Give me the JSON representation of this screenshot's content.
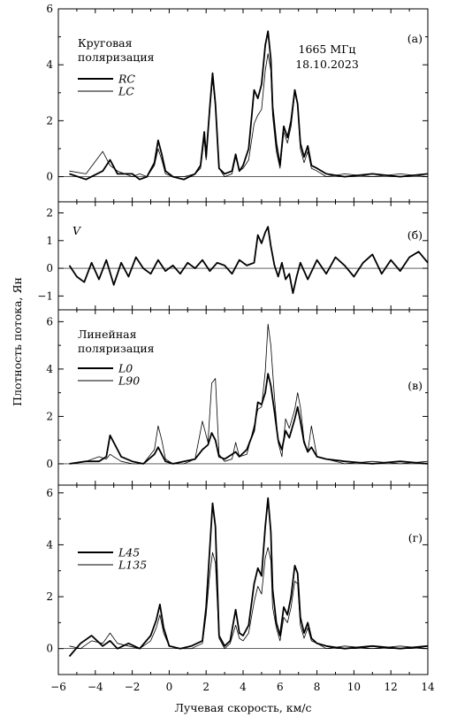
{
  "figure": {
    "xlabel": "Лучевая скорость, км/с",
    "ylabel": "Плотность потока, Ян",
    "xlim": [
      -6,
      14
    ],
    "xticks": [
      -6,
      -4,
      -2,
      0,
      2,
      4,
      6,
      8,
      10,
      12,
      14
    ],
    "xtick_labels": [
      "−6",
      "−4",
      "−2",
      "0",
      "2",
      "4",
      "6",
      "8",
      "10",
      "12",
      "14"
    ]
  },
  "chart_data": [
    {
      "type": "line",
      "panel_label": "(а)",
      "legend_title": "Круговая\nполяризация",
      "header_note": "1665 МГц\n18.10.2023",
      "ylim": [
        -0.9,
        6
      ],
      "yticks": [
        0,
        2,
        4,
        6
      ],
      "ytick_labels": [
        "0",
        "2",
        "4",
        "6"
      ],
      "zero_line": true,
      "series": [
        {
          "name": "RC",
          "style": "thick",
          "x": [
            -5.4,
            -4.5,
            -3.6,
            -3.2,
            -2.8,
            -2.0,
            -1.6,
            -1.2,
            -0.8,
            -0.6,
            -0.4,
            -0.2,
            0.2,
            0.8,
            1.4,
            1.7,
            1.9,
            2.0,
            2.2,
            2.35,
            2.5,
            2.7,
            3.0,
            3.4,
            3.6,
            3.8,
            4.0,
            4.3,
            4.6,
            4.8,
            5.0,
            5.2,
            5.35,
            5.5,
            5.6,
            5.8,
            6.0,
            6.2,
            6.4,
            6.6,
            6.8,
            6.95,
            7.1,
            7.3,
            7.5,
            7.7,
            8.0,
            8.5,
            9.5,
            11,
            12.5,
            14
          ],
          "y": [
            0.1,
            -0.1,
            0.2,
            0.6,
            0.1,
            0.1,
            -0.1,
            0.0,
            0.5,
            1.3,
            0.8,
            0.2,
            0.0,
            -0.1,
            0.1,
            0.4,
            1.6,
            0.7,
            2.5,
            3.7,
            2.6,
            0.3,
            0.1,
            0.2,
            0.8,
            0.2,
            0.4,
            1.0,
            3.1,
            2.8,
            3.3,
            4.7,
            5.2,
            4.2,
            2.5,
            1.2,
            0.4,
            1.8,
            1.4,
            2.0,
            3.1,
            2.6,
            1.2,
            0.7,
            1.1,
            0.4,
            0.3,
            0.1,
            0.0,
            0.1,
            0.0,
            0.1
          ]
        },
        {
          "name": "LC",
          "style": "thin",
          "x": [
            -5.4,
            -4.5,
            -3.6,
            -3.2,
            -2.8,
            -2.0,
            -1.6,
            -1.2,
            -0.8,
            -0.6,
            -0.4,
            -0.2,
            0.2,
            0.8,
            1.4,
            1.7,
            1.9,
            2.0,
            2.2,
            2.35,
            2.5,
            2.7,
            3.0,
            3.4,
            3.6,
            3.8,
            4.0,
            4.3,
            4.6,
            4.8,
            5.0,
            5.2,
            5.35,
            5.5,
            5.6,
            5.8,
            6.0,
            6.2,
            6.4,
            6.6,
            6.8,
            6.95,
            7.1,
            7.3,
            7.5,
            7.7,
            8.0,
            8.5,
            9.5,
            11,
            12.5,
            14
          ],
          "y": [
            0.2,
            0.1,
            0.9,
            0.4,
            0.2,
            0.0,
            0.1,
            0.0,
            0.4,
            1.0,
            0.6,
            0.1,
            0.0,
            0.0,
            0.1,
            0.3,
            1.4,
            0.6,
            2.4,
            3.5,
            2.5,
            0.3,
            0.0,
            0.1,
            0.7,
            0.2,
            0.3,
            0.6,
            1.9,
            2.2,
            2.4,
            3.8,
            4.4,
            3.8,
            2.2,
            0.9,
            0.3,
            1.6,
            1.2,
            1.8,
            3.0,
            2.6,
            1.0,
            0.5,
            0.9,
            0.3,
            0.2,
            0.0,
            0.1,
            0.0,
            0.1,
            0.0
          ]
        }
      ]
    },
    {
      "type": "line",
      "panel_label": "(б)",
      "legend_title": "V",
      "ylim": [
        -1.5,
        2.4
      ],
      "yticks": [
        -1,
        0,
        1,
        2
      ],
      "ytick_labels": [
        "−1",
        "0",
        "1",
        "2"
      ],
      "zero_line": true,
      "series": [
        {
          "name": "V",
          "style": "thick",
          "x": [
            -5.4,
            -5.0,
            -4.6,
            -4.2,
            -3.8,
            -3.4,
            -3.0,
            -2.6,
            -2.2,
            -1.8,
            -1.4,
            -1.0,
            -0.6,
            -0.2,
            0.2,
            0.6,
            1.0,
            1.4,
            1.8,
            2.2,
            2.6,
            3.0,
            3.4,
            3.8,
            4.2,
            4.6,
            4.8,
            5.0,
            5.2,
            5.35,
            5.5,
            5.7,
            5.9,
            6.1,
            6.3,
            6.5,
            6.7,
            6.9,
            7.1,
            7.5,
            8.0,
            8.5,
            9.0,
            9.5,
            10,
            10.5,
            11,
            11.5,
            12,
            12.5,
            13,
            13.5,
            14
          ],
          "y": [
            0.1,
            -0.3,
            -0.5,
            0.2,
            -0.4,
            0.3,
            -0.6,
            0.2,
            -0.3,
            0.4,
            0.0,
            -0.2,
            0.3,
            -0.1,
            0.1,
            -0.2,
            0.2,
            0.0,
            0.3,
            -0.1,
            0.2,
            0.1,
            -0.2,
            0.3,
            0.1,
            0.2,
            1.2,
            0.9,
            1.3,
            1.5,
            0.8,
            0.1,
            -0.3,
            0.2,
            -0.4,
            -0.2,
            -0.9,
            -0.3,
            0.2,
            -0.4,
            0.3,
            -0.2,
            0.4,
            0.1,
            -0.3,
            0.2,
            0.5,
            -0.2,
            0.3,
            -0.1,
            0.4,
            0.6,
            0.2
          ]
        }
      ]
    },
    {
      "type": "line",
      "panel_label": "(в)",
      "legend_title": "Линейная\nполяризация",
      "ylim": [
        -0.9,
        6.5
      ],
      "yticks": [
        0,
        2,
        4,
        6
      ],
      "ytick_labels": [
        "0",
        "2",
        "4",
        "6"
      ],
      "zero_line": true,
      "series": [
        {
          "name": "L0",
          "style": "thick",
          "x": [
            -5.4,
            -4.5,
            -3.8,
            -3.4,
            -3.2,
            -3.0,
            -2.6,
            -2.0,
            -1.4,
            -0.8,
            -0.6,
            -0.4,
            -0.2,
            0.2,
            0.8,
            1.4,
            1.8,
            2.1,
            2.3,
            2.5,
            2.7,
            3.0,
            3.4,
            3.6,
            3.8,
            4.2,
            4.6,
            4.8,
            5.0,
            5.2,
            5.35,
            5.5,
            5.7,
            5.9,
            6.1,
            6.3,
            6.5,
            6.8,
            6.95,
            7.1,
            7.3,
            7.5,
            7.7,
            8.0,
            8.5,
            9.5,
            11,
            12.5,
            14
          ],
          "y": [
            0.0,
            0.1,
            0.1,
            0.3,
            1.2,
            0.9,
            0.3,
            0.1,
            0.0,
            0.4,
            0.7,
            0.4,
            0.1,
            0.0,
            0.1,
            0.2,
            0.6,
            0.8,
            1.3,
            1.0,
            0.3,
            0.2,
            0.4,
            0.5,
            0.3,
            0.6,
            1.4,
            2.6,
            2.5,
            3.0,
            3.8,
            3.3,
            2.2,
            1.0,
            0.6,
            1.4,
            1.1,
            1.9,
            2.4,
            1.8,
            0.9,
            0.5,
            0.7,
            0.3,
            0.2,
            0.1,
            0.0,
            0.1,
            0.0
          ]
        },
        {
          "name": "L90",
          "style": "thin",
          "x": [
            -5.4,
            -4.5,
            -3.8,
            -3.4,
            -3.2,
            -3.0,
            -2.6,
            -2.0,
            -1.4,
            -0.8,
            -0.6,
            -0.4,
            -0.2,
            0.2,
            0.8,
            1.4,
            1.8,
            2.1,
            2.3,
            2.5,
            2.7,
            3.0,
            3.4,
            3.6,
            3.8,
            4.2,
            4.6,
            4.8,
            5.0,
            5.2,
            5.35,
            5.5,
            5.7,
            5.9,
            6.1,
            6.3,
            6.5,
            6.8,
            6.95,
            7.1,
            7.3,
            7.5,
            7.7,
            8.0,
            8.5,
            9.5,
            11,
            12.5,
            14
          ],
          "y": [
            0.0,
            0.1,
            0.3,
            0.2,
            0.4,
            0.3,
            0.1,
            0.0,
            0.0,
            0.6,
            1.6,
            1.0,
            0.2,
            0.0,
            0.0,
            0.2,
            1.8,
            0.9,
            3.4,
            3.6,
            0.4,
            0.1,
            0.2,
            0.9,
            0.3,
            0.4,
            1.6,
            2.3,
            2.4,
            3.9,
            5.9,
            5.0,
            2.8,
            0.9,
            0.3,
            1.9,
            1.5,
            2.3,
            3.0,
            2.4,
            1.0,
            0.5,
            1.6,
            0.3,
            0.2,
            0.0,
            0.1,
            0.0,
            0.1
          ]
        }
      ]
    },
    {
      "type": "line",
      "panel_label": "(г)",
      "legend_title": "",
      "ylim": [
        -1.0,
        6.3
      ],
      "yticks": [
        0,
        2,
        4,
        6
      ],
      "ytick_labels": [
        "0",
        "2",
        "4",
        "6"
      ],
      "zero_line": true,
      "series": [
        {
          "name": "L45",
          "style": "thick",
          "x": [
            -5.4,
            -4.8,
            -4.2,
            -3.6,
            -3.2,
            -2.8,
            -2.2,
            -1.6,
            -1.0,
            -0.7,
            -0.5,
            -0.3,
            0.0,
            0.6,
            1.2,
            1.8,
            2.0,
            2.2,
            2.35,
            2.5,
            2.7,
            3.0,
            3.3,
            3.6,
            3.8,
            4.0,
            4.3,
            4.6,
            4.8,
            5.0,
            5.2,
            5.35,
            5.5,
            5.6,
            5.8,
            6.0,
            6.2,
            6.4,
            6.6,
            6.8,
            6.95,
            7.1,
            7.3,
            7.5,
            7.7,
            8.0,
            8.5,
            9.5,
            11,
            12.5,
            14
          ],
          "y": [
            -0.3,
            0.2,
            0.5,
            0.1,
            0.3,
            0.0,
            0.2,
            0.0,
            0.5,
            1.1,
            1.7,
            0.8,
            0.1,
            0.0,
            0.1,
            0.3,
            1.6,
            3.9,
            5.6,
            4.7,
            0.5,
            0.1,
            0.3,
            1.5,
            0.6,
            0.5,
            0.9,
            2.5,
            3.1,
            2.8,
            4.7,
            5.8,
            4.5,
            2.3,
            1.0,
            0.5,
            1.6,
            1.3,
            2.0,
            3.2,
            2.9,
            1.2,
            0.6,
            1.0,
            0.4,
            0.2,
            0.1,
            0.0,
            0.1,
            0.0,
            0.1
          ]
        },
        {
          "name": "L135",
          "style": "thin",
          "x": [
            -5.4,
            -4.8,
            -4.2,
            -3.6,
            -3.2,
            -2.8,
            -2.2,
            -1.6,
            -1.0,
            -0.7,
            -0.5,
            -0.3,
            0.0,
            0.6,
            1.2,
            1.8,
            2.0,
            2.2,
            2.35,
            2.5,
            2.7,
            3.0,
            3.3,
            3.6,
            3.8,
            4.0,
            4.3,
            4.6,
            4.8,
            5.0,
            5.2,
            5.35,
            5.5,
            5.6,
            5.8,
            6.0,
            6.2,
            6.4,
            6.6,
            6.8,
            6.95,
            7.1,
            7.3,
            7.5,
            7.7,
            8.0,
            8.5,
            9.5,
            11,
            12.5,
            14
          ],
          "y": [
            0.1,
            0.0,
            0.3,
            0.2,
            0.6,
            0.2,
            0.1,
            0.0,
            0.3,
            0.8,
            1.3,
            0.6,
            0.1,
            0.0,
            0.0,
            0.2,
            1.3,
            2.9,
            3.7,
            3.3,
            0.4,
            0.0,
            0.2,
            0.9,
            0.4,
            0.3,
            0.6,
            1.8,
            2.4,
            2.1,
            3.5,
            3.9,
            3.4,
            1.6,
            0.8,
            0.3,
            1.2,
            1.0,
            1.6,
            2.6,
            2.5,
            0.9,
            0.4,
            0.8,
            0.3,
            0.2,
            0.0,
            0.1,
            0.0,
            0.1,
            0.0
          ]
        }
      ]
    }
  ]
}
